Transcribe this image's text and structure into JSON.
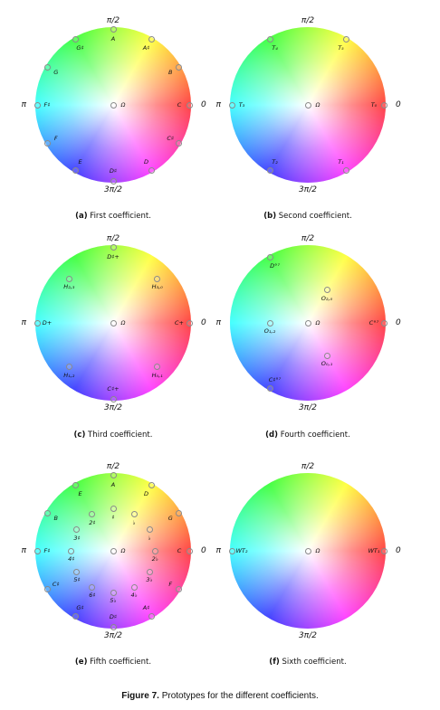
{
  "figure_caption": {
    "label": "Figure 7.",
    "text": "Prototypes for the different coefficients."
  },
  "panels": [
    {
      "axes": {
        "top": "π/2",
        "bottom": "3π/2",
        "left": "π",
        "right": "0"
      },
      "caption_tag": "(a)",
      "caption_text": "First coefficient.",
      "points": [
        {
          "label": "Ω",
          "angle": 0,
          "radius": 0
        },
        {
          "label": "A",
          "angle": 90,
          "radius": 1
        },
        {
          "label": "A♯",
          "angle": 60,
          "radius": 1
        },
        {
          "label": "B",
          "angle": 30,
          "radius": 1
        },
        {
          "label": "C",
          "angle": 0,
          "radius": 1
        },
        {
          "label": "C♯",
          "angle": 330,
          "radius": 1
        },
        {
          "label": "D",
          "angle": 300,
          "radius": 1
        },
        {
          "label": "D♯",
          "angle": 270,
          "radius": 1
        },
        {
          "label": "E",
          "angle": 240,
          "radius": 1
        },
        {
          "label": "F",
          "angle": 210,
          "radius": 1
        },
        {
          "label": "F♯",
          "angle": 180,
          "radius": 1
        },
        {
          "label": "G",
          "angle": 150,
          "radius": 1
        },
        {
          "label": "G♯",
          "angle": 120,
          "radius": 1
        }
      ]
    },
    {
      "axes": {
        "top": "π/2",
        "bottom": "3π/2",
        "left": "π",
        "right": "0"
      },
      "caption_tag": "(b)",
      "caption_text": "Second coefficient.",
      "points": [
        {
          "label": "Ω",
          "angle": 0,
          "radius": 0
        },
        {
          "label": "T₀",
          "angle": 0,
          "radius": 1
        },
        {
          "label": "T₁",
          "angle": 300,
          "radius": 1
        },
        {
          "label": "T₂",
          "angle": 240,
          "radius": 1
        },
        {
          "label": "T₃",
          "angle": 180,
          "radius": 1
        },
        {
          "label": "T₄",
          "angle": 120,
          "radius": 1
        },
        {
          "label": "T₅",
          "angle": 60,
          "radius": 1
        }
      ]
    },
    {
      "axes": {
        "top": "π/2",
        "bottom": "3π/2",
        "left": "π",
        "right": "0"
      },
      "caption_tag": "(c)",
      "caption_text": "Third coefficient.",
      "points": [
        {
          "label": "Ω",
          "angle": 0,
          "radius": 0
        },
        {
          "label": "C+",
          "angle": 0,
          "radius": 1
        },
        {
          "label": "D♯+",
          "angle": 90,
          "radius": 1
        },
        {
          "label": "D+",
          "angle": 180,
          "radius": 1
        },
        {
          "label": "C♯+",
          "angle": 270,
          "radius": 1
        },
        {
          "label": "H₃,₀",
          "angle": 45,
          "radius": 0.82
        },
        {
          "label": "H₂,₃",
          "angle": 135,
          "radius": 0.82
        },
        {
          "label": "H₁,₂",
          "angle": 225,
          "radius": 0.82
        },
        {
          "label": "H₀,₁",
          "angle": 315,
          "radius": 0.82
        }
      ]
    },
    {
      "axes": {
        "top": "π/2",
        "bottom": "3π/2",
        "left": "π",
        "right": "0"
      },
      "caption_tag": "(d)",
      "caption_text": "Fourth coefficient.",
      "points": [
        {
          "label": "Ω",
          "angle": 0,
          "radius": 0
        },
        {
          "label": "C°⁷",
          "angle": 0,
          "radius": 1
        },
        {
          "label": "D°⁷",
          "angle": 120,
          "radius": 1
        },
        {
          "label": "C♯°⁷",
          "angle": 240,
          "radius": 1
        },
        {
          "label": "O₂,₀",
          "angle": 60,
          "radius": 0.5
        },
        {
          "label": "O₁,₂",
          "angle": 180,
          "radius": 0.5
        },
        {
          "label": "O₀,₁",
          "angle": 300,
          "radius": 0.5
        }
      ]
    },
    {
      "axes": {
        "top": "π/2",
        "bottom": "3π/2",
        "left": "π",
        "right": "0"
      },
      "caption_tag": "(e)",
      "caption_text": "Fifth coefficient.",
      "points": [
        {
          "label": "Ω",
          "angle": 0,
          "radius": 0
        },
        {
          "label": "A",
          "angle": 90,
          "radius": 1
        },
        {
          "label": "D",
          "angle": 60,
          "radius": 1
        },
        {
          "label": "G",
          "angle": 30,
          "radius": 1
        },
        {
          "label": "C",
          "angle": 0,
          "radius": 1
        },
        {
          "label": "F",
          "angle": 330,
          "radius": 1
        },
        {
          "label": "A♯",
          "angle": 300,
          "radius": 1
        },
        {
          "label": "D♯",
          "angle": 270,
          "radius": 1
        },
        {
          "label": "G♯",
          "angle": 240,
          "radius": 1
        },
        {
          "label": "C♯",
          "angle": 210,
          "radius": 1
        },
        {
          "label": "F♯",
          "angle": 180,
          "radius": 1
        },
        {
          "label": "B",
          "angle": 150,
          "radius": 1
        },
        {
          "label": "E",
          "angle": 120,
          "radius": 1
        },
        {
          "label": "♯",
          "angle": 90,
          "radius": 0.55
        },
        {
          "label": "♭",
          "angle": 60,
          "radius": 0.55
        },
        {
          "label": "♭",
          "angle": 30,
          "radius": 0.55
        },
        {
          "label": "2♭",
          "angle": 0,
          "radius": 0.55
        },
        {
          "label": "3♭",
          "angle": 330,
          "radius": 0.55
        },
        {
          "label": "4♭",
          "angle": 300,
          "radius": 0.55
        },
        {
          "label": "5♭",
          "angle": 270,
          "radius": 0.55
        },
        {
          "label": "6♯",
          "angle": 240,
          "radius": 0.55
        },
        {
          "label": "5♯",
          "angle": 210,
          "radius": 0.55
        },
        {
          "label": "4♯",
          "angle": 180,
          "radius": 0.55
        },
        {
          "label": "3♯",
          "angle": 150,
          "radius": 0.55
        },
        {
          "label": "2♯",
          "angle": 120,
          "radius": 0.55
        }
      ]
    },
    {
      "axes": {
        "top": "π/2",
        "bottom": "3π/2",
        "left": "π",
        "right": "0"
      },
      "caption_tag": "(f)",
      "caption_text": "Sixth coefficient.",
      "points": [
        {
          "label": "Ω",
          "angle": 0,
          "radius": 0
        },
        {
          "label": "WT₁",
          "angle": 0,
          "radius": 1
        },
        {
          "label": "WT₂",
          "angle": 180,
          "radius": 1
        }
      ]
    }
  ]
}
